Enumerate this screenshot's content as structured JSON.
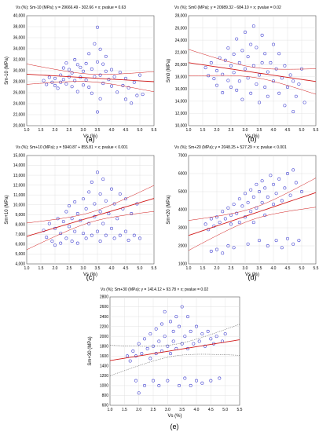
{
  "chart_data": [
    {
      "type": "scatter",
      "panel_label": "(a)",
      "title": "Vs (%); Sm-10 (MPa); y = 29666.49 - 302.66 × x; pvalue = 0.63",
      "xlabel": "Vs (%)",
      "ylabel": "Sm-10 (MPa)",
      "xlim": [
        1.0,
        5.5
      ],
      "ylim": [
        20000,
        40000
      ],
      "xticks": [
        "1.0",
        "1.5",
        "2.0",
        "2.5",
        "3.0",
        "3.5",
        "4.0",
        "4.5",
        "5.0",
        "5.5"
      ],
      "yticks": [
        "20,000",
        "22,000",
        "24,000",
        "26,000",
        "28,000",
        "30,000",
        "32,000",
        "34,000",
        "36,000",
        "38,000",
        "40,000"
      ],
      "regression": {
        "intercept": 29666.49,
        "slope": -302.66,
        "ci": "solid"
      },
      "points": [
        [
          1.6,
          28200
        ],
        [
          1.7,
          27500
        ],
        [
          1.8,
          28800
        ],
        [
          1.9,
          27900
        ],
        [
          2.0,
          28600
        ],
        [
          2.0,
          27300
        ],
        [
          2.1,
          26800
        ],
        [
          2.2,
          29200
        ],
        [
          2.2,
          27900
        ],
        [
          2.3,
          28400
        ],
        [
          2.3,
          30500
        ],
        [
          2.4,
          27600
        ],
        [
          2.4,
          31400
        ],
        [
          2.5,
          28900
        ],
        [
          2.5,
          30200
        ],
        [
          2.6,
          27100
        ],
        [
          2.6,
          29600
        ],
        [
          2.7,
          32000
        ],
        [
          2.7,
          28200
        ],
        [
          2.8,
          31100
        ],
        [
          2.8,
          26200
        ],
        [
          2.9,
          30600
        ],
        [
          2.9,
          28800
        ],
        [
          3.0,
          29900
        ],
        [
          3.0,
          27400
        ],
        [
          3.1,
          31300
        ],
        [
          3.1,
          28300
        ],
        [
          3.2,
          33100
        ],
        [
          3.2,
          27000
        ],
        [
          3.3,
          30300
        ],
        [
          3.3,
          25900
        ],
        [
          3.4,
          34900
        ],
        [
          3.4,
          28900
        ],
        [
          3.5,
          37900
        ],
        [
          3.5,
          31600
        ],
        [
          3.5,
          22500
        ],
        [
          3.6,
          33900
        ],
        [
          3.6,
          29200
        ],
        [
          3.6,
          24900
        ],
        [
          3.7,
          31200
        ],
        [
          3.7,
          27700
        ],
        [
          3.8,
          29900
        ],
        [
          3.8,
          32600
        ],
        [
          3.9,
          28400
        ],
        [
          4.0,
          30200
        ],
        [
          4.0,
          27200
        ],
        [
          4.1,
          28900
        ],
        [
          4.2,
          26100
        ],
        [
          4.3,
          29700
        ],
        [
          4.4,
          27300
        ],
        [
          4.5,
          24800
        ],
        [
          4.5,
          28600
        ],
        [
          4.6,
          26900
        ],
        [
          4.7,
          24100
        ],
        [
          4.8,
          27900
        ],
        [
          4.9,
          25500
        ],
        [
          5.0,
          29200
        ],
        [
          5.1,
          25700
        ]
      ]
    },
    {
      "type": "scatter",
      "panel_label": "(b)",
      "title": "Vs (%); Sm0 (MPa); y = 20989.32 - 684.10 × x; pvalue = 0.02",
      "xlabel": "Vs (%)",
      "ylabel": "Sm0 (MPa)",
      "xlim": [
        1.0,
        5.5
      ],
      "ylim": [
        10000,
        28000
      ],
      "xticks": [
        "1.0",
        "1.5",
        "2.0",
        "2.5",
        "3.0",
        "3.5",
        "4.0",
        "4.5",
        "5.0",
        "5.5"
      ],
      "yticks": [
        "10,000",
        "12,000",
        "14,000",
        "16,000",
        "18,000",
        "20,000",
        "22,000",
        "24,000",
        "26,000",
        "28,000"
      ],
      "regression": {
        "intercept": 20989.32,
        "slope": -684.1,
        "ci": "solid"
      },
      "points": [
        [
          1.6,
          19500
        ],
        [
          1.7,
          18200
        ],
        [
          1.8,
          20300
        ],
        [
          1.9,
          17700
        ],
        [
          2.0,
          19000
        ],
        [
          2.0,
          16600
        ],
        [
          2.1,
          21100
        ],
        [
          2.2,
          18400
        ],
        [
          2.2,
          15400
        ],
        [
          2.3,
          20700
        ],
        [
          2.4,
          17400
        ],
        [
          2.4,
          22700
        ],
        [
          2.5,
          19800
        ],
        [
          2.5,
          16300
        ],
        [
          2.6,
          21700
        ],
        [
          2.6,
          18700
        ],
        [
          2.7,
          24200
        ],
        [
          2.7,
          15800
        ],
        [
          2.8,
          20300
        ],
        [
          2.8,
          17300
        ],
        [
          2.9,
          22300
        ],
        [
          2.9,
          14300
        ],
        [
          3.0,
          19300
        ],
        [
          3.0,
          25300
        ],
        [
          3.1,
          17800
        ],
        [
          3.1,
          21300
        ],
        [
          3.2,
          15300
        ],
        [
          3.2,
          23300
        ],
        [
          3.3,
          19800
        ],
        [
          3.3,
          26300
        ],
        [
          3.4,
          16800
        ],
        [
          3.4,
          22800
        ],
        [
          3.5,
          18300
        ],
        [
          3.5,
          13800
        ],
        [
          3.6,
          24800
        ],
        [
          3.6,
          20300
        ],
        [
          3.7,
          16300
        ],
        [
          3.7,
          21800
        ],
        [
          3.8,
          18800
        ],
        [
          3.8,
          14800
        ],
        [
          3.9,
          20300
        ],
        [
          4.0,
          23300
        ],
        [
          4.0,
          17300
        ],
        [
          4.1,
          19300
        ],
        [
          4.2,
          15300
        ],
        [
          4.2,
          21800
        ],
        [
          4.3,
          17800
        ],
        [
          4.4,
          13300
        ],
        [
          4.4,
          19800
        ],
        [
          4.5,
          16300
        ],
        [
          4.6,
          18300
        ],
        [
          4.7,
          12300
        ],
        [
          4.7,
          17300
        ],
        [
          4.8,
          14800
        ],
        [
          4.9,
          16800
        ],
        [
          5.0,
          19300
        ],
        [
          5.1,
          13800
        ]
      ]
    },
    {
      "type": "scatter",
      "panel_label": "(c)",
      "title": "Vs (%); Sm+10 (MPa); y = 5940.87 + 855.81 × x; pvalue < 0.001",
      "xlabel": "Vs (%)",
      "ylabel": "Sm+10 (MPa)",
      "xlim": [
        1.0,
        5.5
      ],
      "ylim": [
        4000,
        15000
      ],
      "xticks": [
        "1.0",
        "1.5",
        "2.0",
        "2.5",
        "3.0",
        "3.5",
        "4.0",
        "4.5",
        "5.0",
        "5.5"
      ],
      "yticks": [
        "4,000",
        "5,000",
        "6,000",
        "7,000",
        "8,000",
        "9,000",
        "10,000",
        "11,000",
        "12,000",
        "13,000",
        "14,000",
        "15,000"
      ],
      "regression": {
        "intercept": 5940.87,
        "slope": 855.81,
        "ci": "solid"
      },
      "points": [
        [
          1.6,
          7400
        ],
        [
          1.7,
          6700
        ],
        [
          1.8,
          8100
        ],
        [
          1.9,
          6300
        ],
        [
          2.0,
          7600
        ],
        [
          2.0,
          5900
        ],
        [
          2.1,
          8600
        ],
        [
          2.2,
          7100
        ],
        [
          2.2,
          6100
        ],
        [
          2.3,
          8300
        ],
        [
          2.4,
          9300
        ],
        [
          2.4,
          6600
        ],
        [
          2.5,
          7800
        ],
        [
          2.5,
          9900
        ],
        [
          2.6,
          6300
        ],
        [
          2.6,
          8600
        ],
        [
          2.7,
          10300
        ],
        [
          2.7,
          7300
        ],
        [
          2.8,
          9100
        ],
        [
          2.8,
          6100
        ],
        [
          2.9,
          8400
        ],
        [
          3.0,
          10600
        ],
        [
          3.0,
          7100
        ],
        [
          3.1,
          9600
        ],
        [
          3.1,
          6600
        ],
        [
          3.2,
          11300
        ],
        [
          3.2,
          8100
        ],
        [
          3.3,
          12300
        ],
        [
          3.3,
          6900
        ],
        [
          3.4,
          10100
        ],
        [
          3.4,
          8800
        ],
        [
          3.5,
          13300
        ],
        [
          3.5,
          7300
        ],
        [
          3.6,
          11100
        ],
        [
          3.6,
          9300
        ],
        [
          3.6,
          6300
        ],
        [
          3.7,
          12600
        ],
        [
          3.7,
          8100
        ],
        [
          3.8,
          10400
        ],
        [
          3.8,
          6900
        ],
        [
          3.9,
          9100
        ],
        [
          4.0,
          11600
        ],
        [
          4.0,
          7600
        ],
        [
          4.1,
          10100
        ],
        [
          4.1,
          6600
        ],
        [
          4.2,
          8600
        ],
        [
          4.3,
          11100
        ],
        [
          4.3,
          6900
        ],
        [
          4.4,
          9600
        ],
        [
          4.5,
          7300
        ],
        [
          4.5,
          10600
        ],
        [
          4.6,
          6400
        ],
        [
          4.7,
          9100
        ],
        [
          4.8,
          6900
        ],
        [
          4.9,
          10100
        ],
        [
          5.0,
          6600
        ]
      ]
    },
    {
      "type": "scatter",
      "panel_label": "(d)",
      "title": "Vs (%); Sm+20 (MPa); y = 2048.25 + 527.29 × x; pvalue < 0.001",
      "xlabel": "Vs (%)",
      "ylabel": "Sm+20 (MPa)",
      "xlim": [
        1.0,
        5.5
      ],
      "ylim": [
        1000,
        7000
      ],
      "xticks": [
        "1.0",
        "1.5",
        "2.0",
        "2.5",
        "3.0",
        "3.5",
        "4.0",
        "4.5",
        "5.0",
        "5.5"
      ],
      "yticks": [
        "1000",
        "2000",
        "3000",
        "4000",
        "5000",
        "6000",
        "7000"
      ],
      "regression": {
        "intercept": 2048.25,
        "slope": 527.29,
        "ci": "solid"
      },
      "points": [
        [
          1.6,
          3200
        ],
        [
          1.7,
          2900
        ],
        [
          1.8,
          3500
        ],
        [
          1.8,
          1700
        ],
        [
          1.9,
          3100
        ],
        [
          2.0,
          3600
        ],
        [
          2.0,
          1800
        ],
        [
          2.1,
          3300
        ],
        [
          2.2,
          3900
        ],
        [
          2.2,
          1600
        ],
        [
          2.3,
          3500
        ],
        [
          2.4,
          4100
        ],
        [
          2.4,
          2000
        ],
        [
          2.5,
          3700
        ],
        [
          2.5,
          3200
        ],
        [
          2.6,
          4300
        ],
        [
          2.6,
          1900
        ],
        [
          2.7,
          3800
        ],
        [
          2.8,
          4600
        ],
        [
          2.8,
          3300
        ],
        [
          2.9,
          4200
        ],
        [
          3.0,
          4900
        ],
        [
          3.0,
          3600
        ],
        [
          3.1,
          4400
        ],
        [
          3.1,
          2100
        ],
        [
          3.2,
          5100
        ],
        [
          3.2,
          3900
        ],
        [
          3.3,
          4700
        ],
        [
          3.3,
          3300
        ],
        [
          3.4,
          5400
        ],
        [
          3.4,
          4100
        ],
        [
          3.5,
          5000
        ],
        [
          3.5,
          2300
        ],
        [
          3.6,
          5600
        ],
        [
          3.6,
          4400
        ],
        [
          3.7,
          3700
        ],
        [
          3.7,
          5200
        ],
        [
          3.8,
          4700
        ],
        [
          3.8,
          2000
        ],
        [
          3.9,
          5900
        ],
        [
          4.0,
          4300
        ],
        [
          4.0,
          5400
        ],
        [
          4.1,
          2300
        ],
        [
          4.1,
          4900
        ],
        [
          4.2,
          5700
        ],
        [
          4.3,
          4500
        ],
        [
          4.3,
          1900
        ],
        [
          4.4,
          5200
        ],
        [
          4.5,
          6000
        ],
        [
          4.5,
          2400
        ],
        [
          4.6,
          4800
        ],
        [
          4.7,
          6200
        ],
        [
          4.7,
          2100
        ],
        [
          4.8,
          5500
        ],
        [
          4.9,
          2300
        ],
        [
          5.0,
          5000
        ]
      ]
    },
    {
      "type": "scatter",
      "panel_label": "(e)",
      "title": "Vs (%); Sm+30 (MPa); y = 1414.12 + 93.78 × x; pvalue = 0.02",
      "xlabel": "Vs (%)",
      "ylabel": "Sm+30 (MPa)",
      "xlim": [
        1.0,
        5.5
      ],
      "ylim": [
        600,
        2800
      ],
      "xticks": [
        "1.0",
        "1.5",
        "2.0",
        "2.5",
        "3.0",
        "3.5",
        "4.0",
        "4.5",
        "5.0",
        "5.5"
      ],
      "yticks": [
        "600",
        "800",
        "1000",
        "1200",
        "1400",
        "1600",
        "1800",
        "2000",
        "2200",
        "2400",
        "2600",
        "2800"
      ],
      "regression": {
        "intercept": 1414.12,
        "slope": 93.78,
        "ci": "dotted"
      },
      "points": [
        [
          1.6,
          1600
        ],
        [
          1.7,
          1500
        ],
        [
          1.8,
          1700
        ],
        [
          1.9,
          1600
        ],
        [
          1.9,
          1100
        ],
        [
          2.0,
          1850
        ],
        [
          2.0,
          850
        ],
        [
          2.1,
          1650
        ],
        [
          2.2,
          1950
        ],
        [
          2.2,
          1000
        ],
        [
          2.3,
          1750
        ],
        [
          2.4,
          2050
        ],
        [
          2.4,
          1550
        ],
        [
          2.5,
          1800
        ],
        [
          2.5,
          1100
        ],
        [
          2.6,
          2150
        ],
        [
          2.6,
          1650
        ],
        [
          2.7,
          1900
        ],
        [
          2.7,
          1000
        ],
        [
          2.8,
          2250
        ],
        [
          2.8,
          1700
        ],
        [
          2.9,
          2000
        ],
        [
          2.9,
          2500
        ],
        [
          3.0,
          1800
        ],
        [
          3.0,
          1100
        ],
        [
          3.1,
          2300
        ],
        [
          3.1,
          1650
        ],
        [
          3.2,
          2100
        ],
        [
          3.2,
          1900
        ],
        [
          3.3,
          2400
        ],
        [
          3.3,
          1750
        ],
        [
          3.4,
          2200
        ],
        [
          3.4,
          1000
        ],
        [
          3.5,
          2600
        ],
        [
          3.5,
          1850
        ],
        [
          3.6,
          2000
        ],
        [
          3.6,
          1150
        ],
        [
          3.7,
          2400
        ],
        [
          3.7,
          1750
        ],
        [
          3.8,
          2100
        ],
        [
          3.8,
          1000
        ],
        [
          3.9,
          1850
        ],
        [
          4.0,
          2200
        ],
        [
          4.0,
          1100
        ],
        [
          4.1,
          1900
        ],
        [
          4.2,
          2050
        ],
        [
          4.2,
          1050
        ],
        [
          4.3,
          1800
        ],
        [
          4.4,
          2100
        ],
        [
          4.5,
          1950
        ],
        [
          4.5,
          1100
        ],
        [
          4.6,
          1850
        ],
        [
          4.7,
          2000
        ],
        [
          4.8,
          1150
        ],
        [
          4.9,
          1900
        ],
        [
          5.0,
          2050
        ]
      ]
    }
  ]
}
